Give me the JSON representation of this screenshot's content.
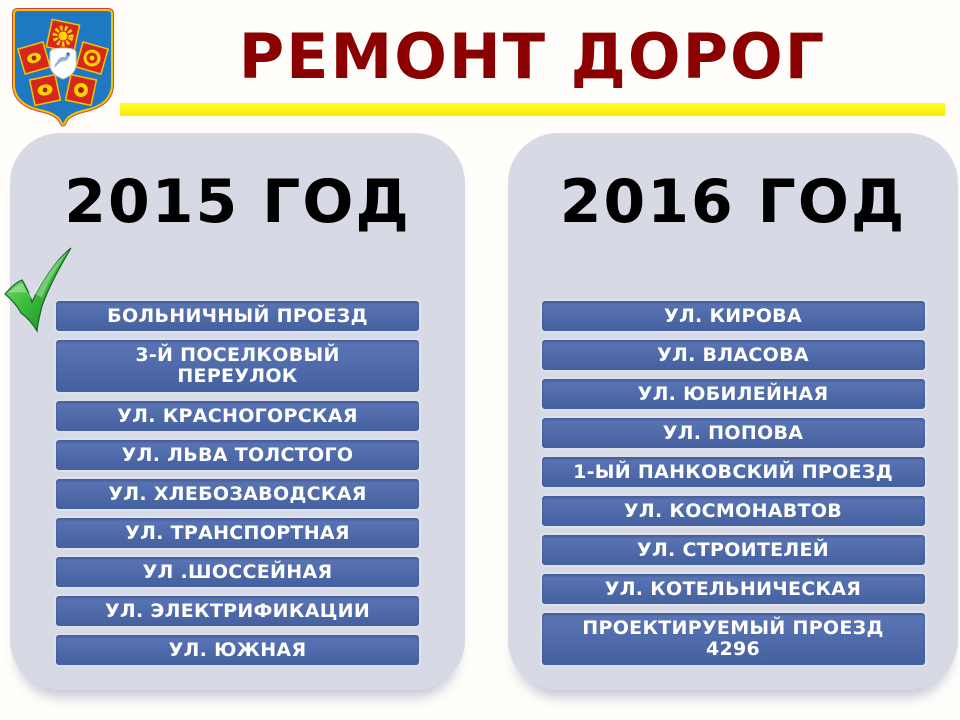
{
  "header": {
    "title": "РЕМОНТ ДОРОГ",
    "emblem_name": "town-coat-of-arms",
    "title_color": "#8B0000",
    "underline_color": "#FFFF00"
  },
  "checkmark": {
    "icon": "green-check-mark"
  },
  "columns": [
    {
      "year": "2015 ГОД",
      "items": [
        "БОЛЬНИЧНЫЙ ПРОЕЗД",
        "3-Й ПОСЕЛКОВЫЙ\nПЕРЕУЛОК",
        "УЛ. КРАСНОГОРСКАЯ",
        "УЛ. ЛЬВА ТОЛСТОГО",
        "УЛ. ХЛЕБОЗАВОДСКАЯ",
        "УЛ. ТРАНСПОРТНАЯ",
        "УЛ .ШОССЕЙНАЯ",
        "УЛ. ЭЛЕКТРИФИКАЦИИ",
        "УЛ. ЮЖНАЯ"
      ]
    },
    {
      "year": "2016 ГОД",
      "items": [
        "УЛ. КИРОВА",
        "УЛ. ВЛАСОВА",
        "УЛ. ЮБИЛЕЙНАЯ",
        "УЛ. ПОПОВА",
        "1-ЫЙ ПАНКОВСКИЙ  ПРОЕЗД",
        "УЛ. КОСМОНАВТОВ",
        "УЛ. СТРОИТЕЛЕЙ",
        "УЛ. КОТЕЛЬНИЧЕСКАЯ",
        "ПРОЕКТИРУЕМЫЙ  ПРОЕЗД\n4296"
      ]
    }
  ],
  "colors": {
    "bar_fill": "#4B68A9",
    "bar_border": "#DDE1EE",
    "panel_fill": "#D7D9E5",
    "accent_yellow": "#FFFF00",
    "title_red": "#8B0000",
    "check_green": "#2FA838",
    "emblem_blue": "#1E78C2",
    "emblem_red": "#D6281A",
    "emblem_gold": "#F5C400"
  }
}
